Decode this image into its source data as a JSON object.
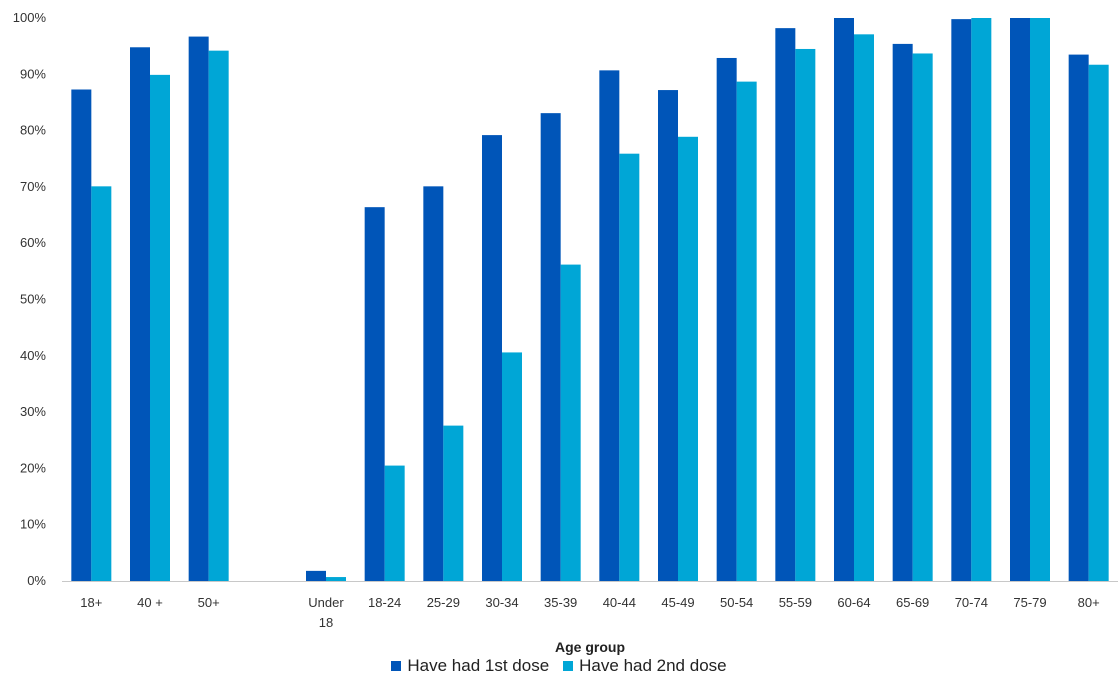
{
  "chart_data": {
    "type": "bar",
    "xlabel": "Age group",
    "ylabel": "",
    "ylim": [
      0,
      100
    ],
    "yticks": [
      "0%",
      "10%",
      "20%",
      "30%",
      "40%",
      "50%",
      "60%",
      "70%",
      "80%",
      "90%",
      "100%"
    ],
    "grid": false,
    "legend_position": "bottom",
    "categories": [
      "18+",
      "40 +",
      "50+",
      "",
      "Under 18",
      "18-24",
      "25-29",
      "30-34",
      "35-39",
      "40-44",
      "45-49",
      "50-54",
      "55-59",
      "60-64",
      "65-69",
      "70-74",
      "75-79",
      "80+"
    ],
    "series": [
      {
        "name": "Have had 1st dose",
        "color": "#0055b8",
        "values": [
          87.3,
          94.8,
          96.7,
          null,
          1.8,
          66.4,
          70.1,
          79.2,
          83.1,
          90.7,
          87.2,
          92.9,
          98.2,
          100,
          95.4,
          99.8,
          100,
          93.5
        ]
      },
      {
        "name": "Have had 2nd dose",
        "color": "#00a6d6",
        "values": [
          70.1,
          89.9,
          94.2,
          null,
          0.7,
          20.5,
          27.6,
          40.6,
          56.2,
          75.9,
          78.9,
          88.7,
          94.5,
          97.1,
          93.7,
          100,
          100,
          91.7
        ]
      }
    ]
  }
}
